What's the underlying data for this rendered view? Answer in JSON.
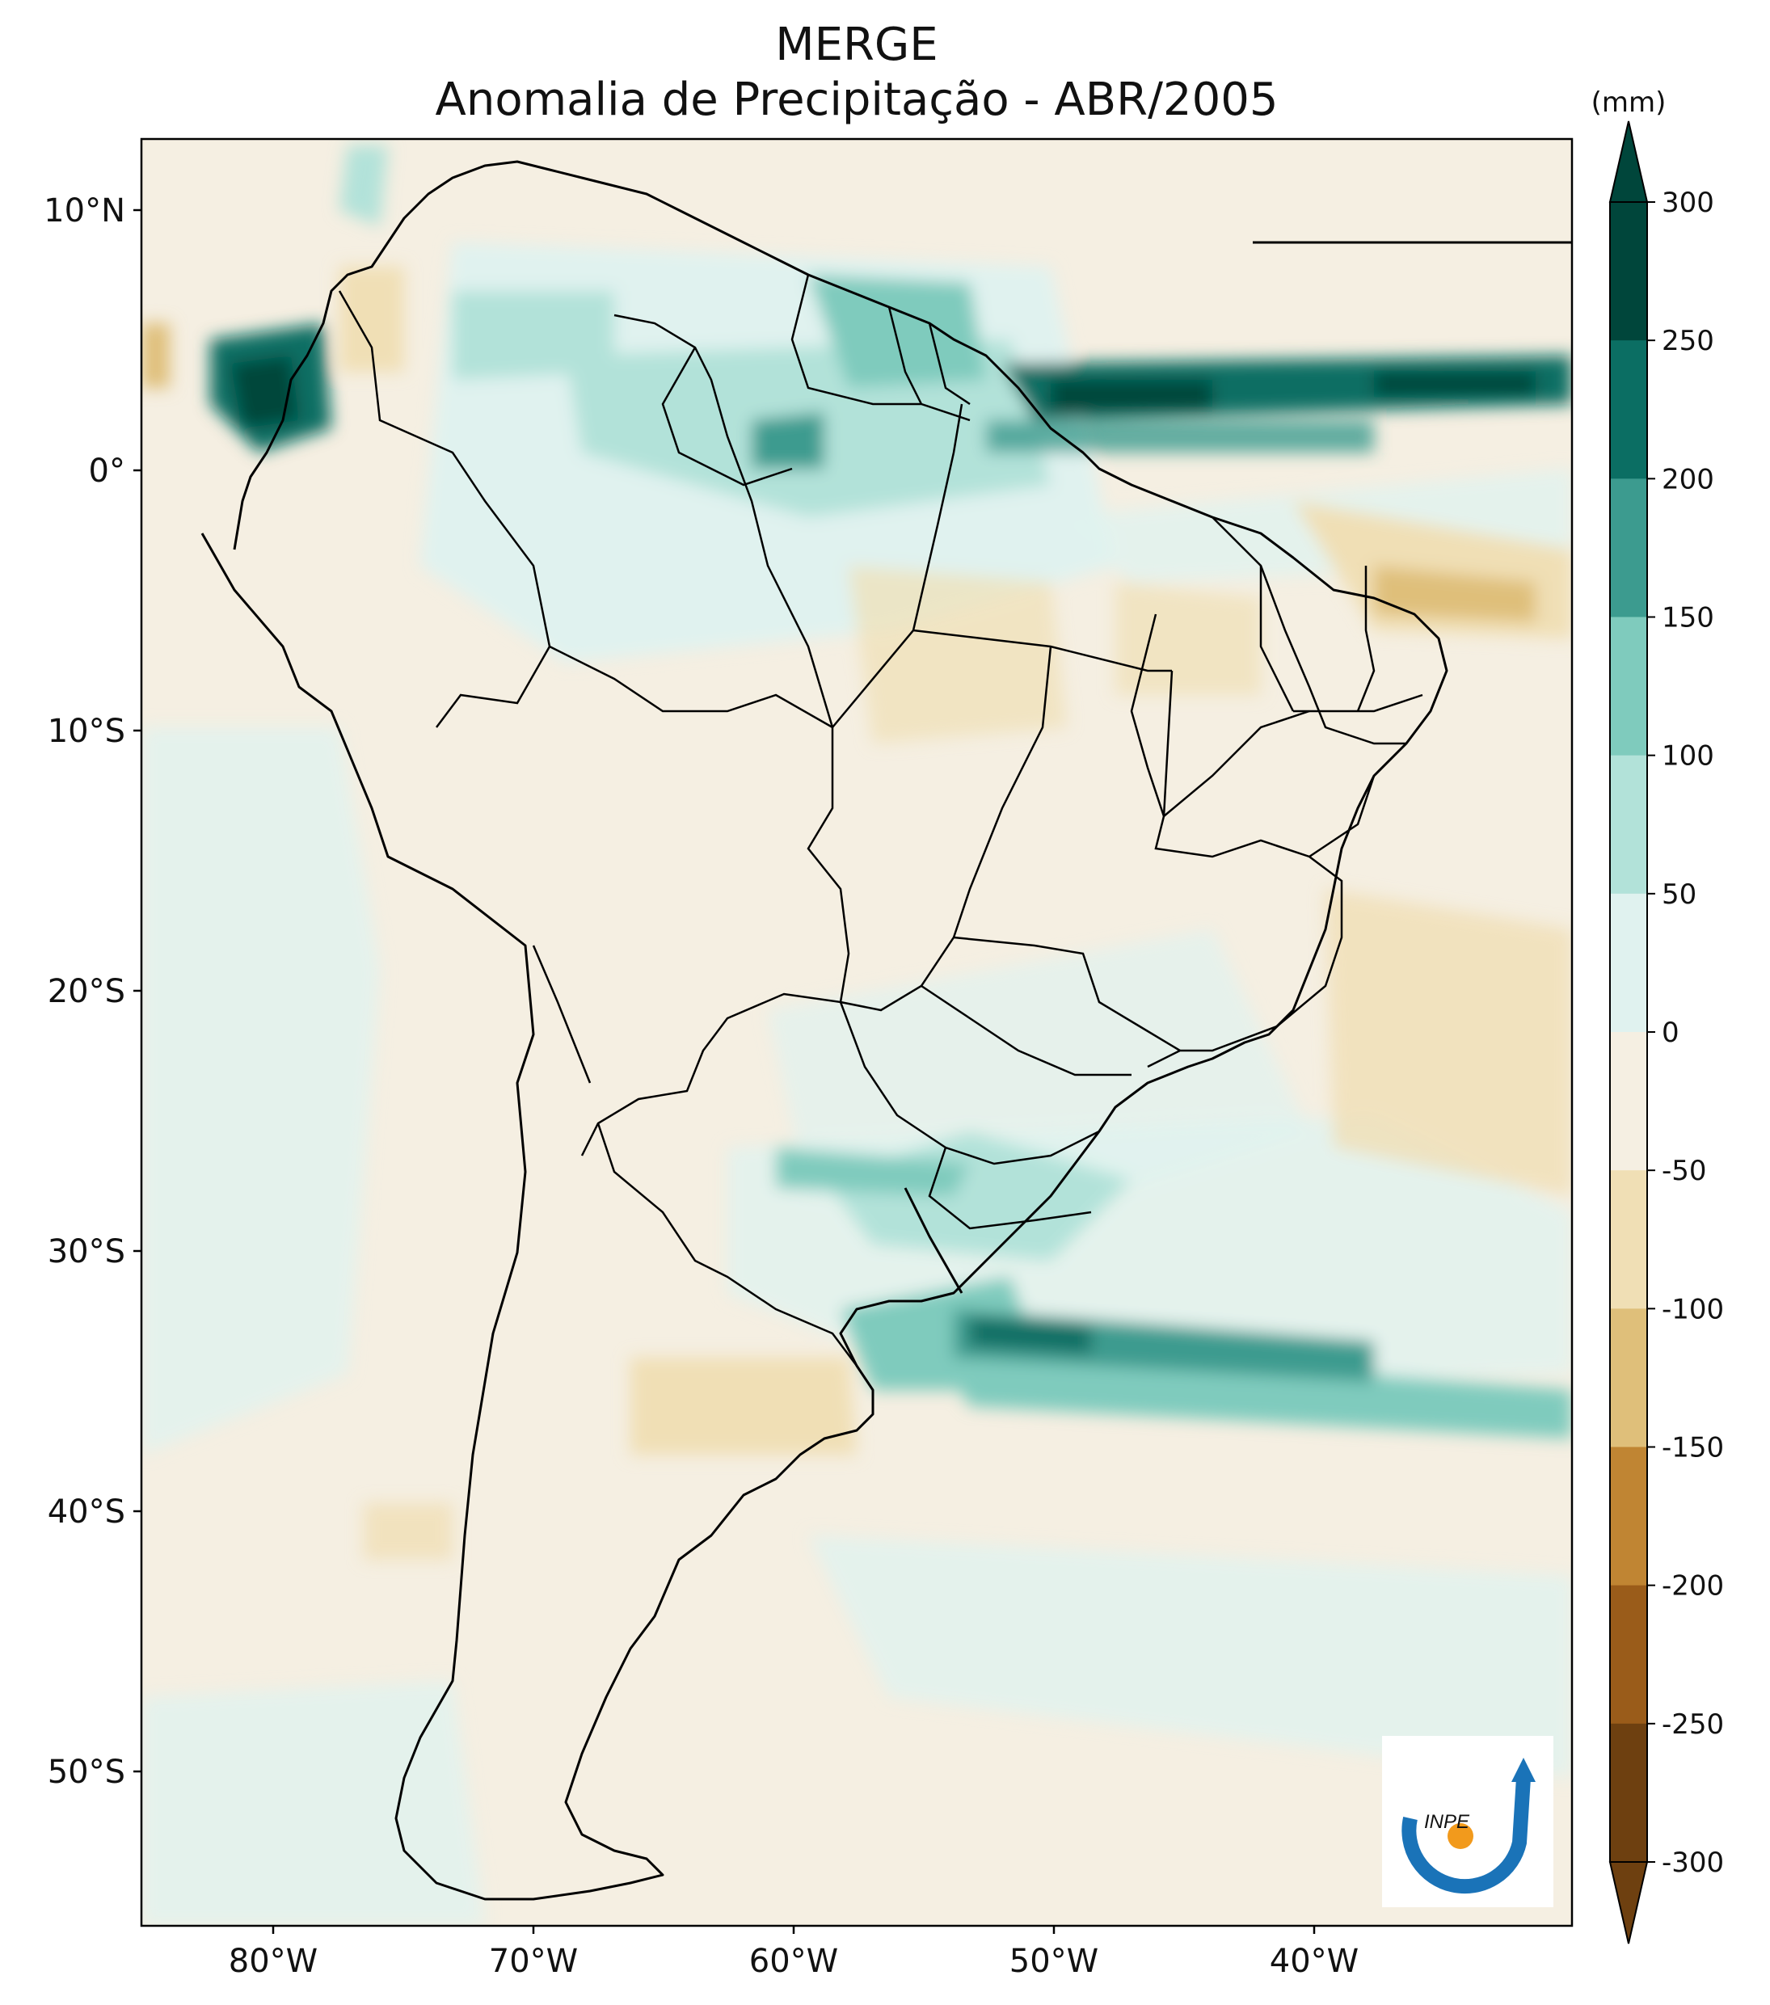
{
  "title": {
    "line1": "MERGE",
    "line2": "Anomalia de Precipitação - ABR/2005"
  },
  "map": {
    "region": "South America",
    "lat_labels": [
      "10°N",
      "0°",
      "10°S",
      "20°S",
      "30°S",
      "40°S",
      "50°S"
    ],
    "lon_labels": [
      "80°W",
      "70°W",
      "60°W",
      "50°W",
      "40°W"
    ]
  },
  "colorbar": {
    "unit": "(mm)",
    "ticks": [
      "300",
      "250",
      "200",
      "150",
      "100",
      "50",
      "0",
      "-50",
      "-100",
      "-150",
      "-200",
      "-250",
      "-300"
    ],
    "colors": [
      "#003c30",
      "#01665e",
      "#35978f",
      "#80cdc1",
      "#c7eae5",
      "#f5f5f5",
      "#f6e8c3",
      "#dfc27d",
      "#bf812d",
      "#8c510a",
      "#543005"
    ],
    "band_colors": [
      "#00463b",
      "#0b6e63",
      "#3c9b8f",
      "#7fcbbd",
      "#b2e2d9",
      "#e0f2ef",
      "#f5efe2",
      "#f0dfb5",
      "#dfbf7a",
      "#c08533",
      "#9a5c1a",
      "#6e4010"
    ]
  },
  "logo": {
    "text": "INPE"
  }
}
